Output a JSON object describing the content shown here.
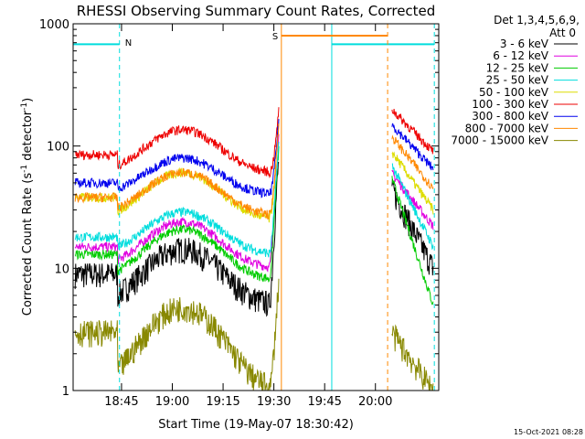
{
  "chart_data": {
    "type": "line",
    "title": "RHESSI Observing Summary Count Rates, Corrected",
    "xlabel": "Start Time (19-May-07 18:30:42)",
    "ylabel": "Corrected Count Rate (s",
    "ylabel_sup1": "-1",
    "ylabel_mid": " detector",
    "ylabel_sup2": "-1",
    "ylabel_end": ")",
    "yscale": "log",
    "ylim": [
      1,
      1000
    ],
    "xlim_minutes": [
      18.517,
      20.317
    ],
    "x_ticks": [
      {
        "label": "18:45",
        "hour": 18.75
      },
      {
        "label": "19:00",
        "hour": 19.0
      },
      {
        "label": "19:15",
        "hour": 19.25
      },
      {
        "label": "19:30",
        "hour": 19.5
      },
      {
        "label": "19:45",
        "hour": 19.75
      },
      {
        "label": "20:00",
        "hour": 20.0
      }
    ],
    "y_ticks": [
      {
        "label": "1",
        "value": 1
      },
      {
        "label": "10",
        "value": 10
      },
      {
        "label": "100",
        "value": 100
      },
      {
        "label": "1000",
        "value": 1000
      }
    ],
    "legend_header": [
      "Det 1,3,4,5,6,9,",
      "Att 0"
    ],
    "legend_position": "right",
    "footer": "15-Oct-2021 08:28",
    "series": [
      {
        "name": "3 - 6 keV",
        "color": "#000000",
        "pre": [
          5,
          9
        ],
        "peak": 80,
        "post": [
          45,
          10
        ]
      },
      {
        "name": "6 - 12 keV",
        "color": "#e000e0",
        "pre": [
          10,
          15
        ],
        "peak": 120,
        "post": [
          60,
          22
        ]
      },
      {
        "name": "12 - 25 keV",
        "color": "#00cc00",
        "pre": [
          8,
          13
        ],
        "peak": 100,
        "post": [
          55,
          5
        ]
      },
      {
        "name": "25 - 50 keV",
        "color": "#00dddd",
        "pre": [
          13,
          18
        ],
        "peak": 110,
        "post": [
          70,
          15
        ]
      },
      {
        "name": "50 - 100 keV",
        "color": "#dddd00",
        "pre": [
          25,
          38
        ],
        "peak": 150,
        "post": [
          90,
          30
        ]
      },
      {
        "name": "100 - 300 keV",
        "color": "#ee0000",
        "pre": [
          60,
          85
        ],
        "peak": 200,
        "post": [
          200,
          90
        ]
      },
      {
        "name": "300 - 800 keV",
        "color": "#0000ee",
        "pre": [
          40,
          50
        ],
        "peak": 170,
        "post": [
          150,
          65
        ]
      },
      {
        "name": "800 - 7000 keV",
        "color": "#ff8800",
        "pre": [
          27,
          38
        ],
        "peak": 150,
        "post": [
          120,
          45
        ]
      },
      {
        "name": "7000 - 15000 keV",
        "color": "#888800",
        "pre": [
          1,
          3
        ],
        "peak": 8,
        "post": [
          3,
          1
        ]
      }
    ],
    "annotations": [
      {
        "label": "N",
        "color": "#00dddd"
      },
      {
        "label": "S",
        "color": "#ff8800"
      }
    ]
  }
}
